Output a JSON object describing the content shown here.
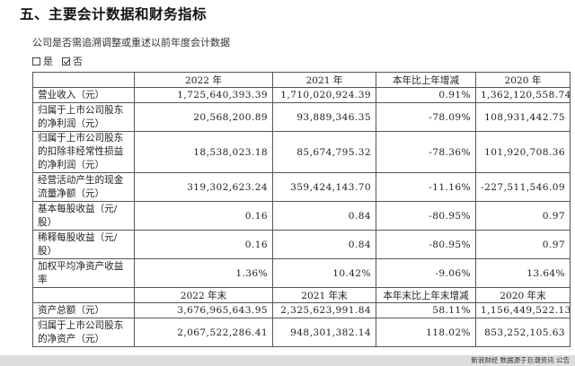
{
  "section_title": "五、主要会计数据和财务指标",
  "question": "公司是否需追溯调整或重述以前年度会计数据",
  "answers": [
    {
      "label": "是",
      "checked": false
    },
    {
      "label": "否",
      "checked": true
    }
  ],
  "table1": {
    "headers": [
      "",
      "2022 年",
      "2021 年",
      "本年比上年增减",
      "2020 年"
    ],
    "rows": [
      {
        "label": "营业收入（元）",
        "values": [
          "1,725,640,393.39",
          "1,710,020,924.39",
          "0.91%",
          "1,362,120,558.74"
        ]
      },
      {
        "label": "归属于上市公司股东的净利润（元）",
        "values": [
          "20,568,200.89",
          "93,889,346.35",
          "-78.09%",
          "108,931,442.75"
        ]
      },
      {
        "label": "归属于上市公司股东的扣除非经常性损益的净利润（元）",
        "values": [
          "18,538,023.18",
          "85,674,795.32",
          "-78.36%",
          "101,920,708.36"
        ]
      },
      {
        "label": "经营活动产生的现金流量净额（元）",
        "values": [
          "319,302,623.24",
          "359,424,143.70",
          "-11.16%",
          "-227,511,546.09"
        ]
      },
      {
        "label": "基本每股收益（元/股）",
        "values": [
          "0.16",
          "0.84",
          "-80.95%",
          "0.97"
        ]
      },
      {
        "label": "稀释每股收益（元/股）",
        "values": [
          "0.16",
          "0.84",
          "-80.95%",
          "0.97"
        ]
      },
      {
        "label": "加权平均净资产收益率",
        "values": [
          "1.36%",
          "10.42%",
          "-9.06%",
          "13.64%"
        ]
      }
    ]
  },
  "table2": {
    "headers": [
      "",
      "2022 年末",
      "2021 年末",
      "本年末比上年末增减",
      "2020 年末"
    ],
    "rows": [
      {
        "label": "资产总额（元）",
        "values": [
          "3,676,965,643.95",
          "2,325,623,991.84",
          "58.11%",
          "1,156,449,522.13"
        ]
      },
      {
        "label": "归属于上市公司股东的净资产（元）",
        "values": [
          "2,067,522,286.41",
          "948,301,382.14",
          "118.02%",
          "853,252,105.63"
        ]
      }
    ]
  },
  "watermark": "新浪财经 数据源于巨潮资讯 公告"
}
